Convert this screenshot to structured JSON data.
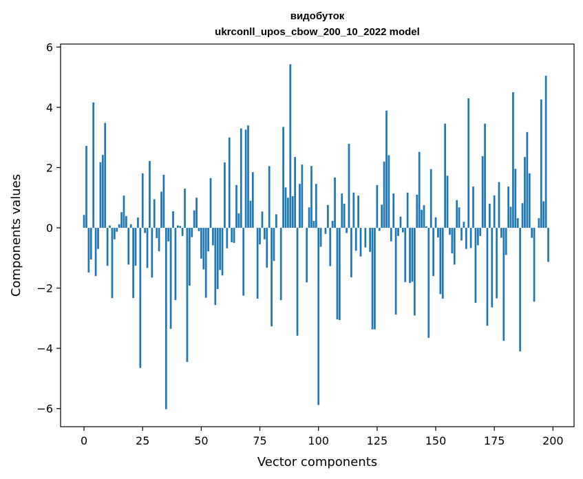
{
  "chart_data": {
    "type": "bar",
    "title": "видобуток",
    "subtitle": "ukrconll_upos_cbow_200_10_2022 model",
    "xlabel": "Vector components",
    "ylabel": "Components values",
    "xlim": [
      -10,
      209
    ],
    "ylim": [
      -6.6,
      6.1
    ],
    "xticks": [
      0,
      25,
      50,
      75,
      100,
      125,
      150,
      175,
      200
    ],
    "yticks": [
      -6,
      -4,
      -2,
      0,
      2,
      4,
      6
    ],
    "bar_color": "#1f77b4",
    "grid": false,
    "legend": "none",
    "values": [
      0.43,
      2.72,
      -1.48,
      -1.05,
      4.16,
      -1.6,
      -0.7,
      2.18,
      2.42,
      3.48,
      -1.26,
      0.08,
      -2.33,
      -0.38,
      -0.13,
      0.12,
      0.52,
      1.07,
      0.39,
      -1.22,
      0.12,
      -2.33,
      -1.26,
      0.34,
      -4.65,
      1.81,
      -0.17,
      -1.33,
      2.22,
      -1.65,
      0.95,
      -0.34,
      -0.78,
      1.2,
      1.76,
      -6.02,
      -0.45,
      -3.35,
      0.55,
      -2.4,
      0.08,
      0.06,
      -0.27,
      1.3,
      -4.45,
      -1.92,
      -0.31,
      0.58,
      1.0,
      -0.11,
      -1.02,
      -1.38,
      -2.32,
      -0.78,
      1.65,
      -0.58,
      -2.56,
      -2.03,
      -1.4,
      -1.58,
      2.17,
      -0.68,
      3.0,
      -0.48,
      -0.5,
      1.42,
      0.48,
      3.3,
      -2.25,
      3.26,
      3.4,
      0.9,
      1.85,
      0.0,
      -2.35,
      -0.55,
      0.54,
      -0.38,
      -1.32,
      2.05,
      -3.27,
      -1.1,
      0.45,
      0.0,
      -2.4,
      3.35,
      1.34,
      1.0,
      5.43,
      1.05,
      2.35,
      -3.58,
      1.46,
      2.1,
      0.0,
      -1.81,
      0.68,
      2.05,
      0.23,
      1.46,
      -5.88,
      -0.63,
      0.0,
      -0.2,
      0.76,
      -1.27,
      0.23,
      1.67,
      -3.04,
      -3.06,
      1.14,
      0.8,
      -0.17,
      2.79,
      -1.64,
      1.17,
      -0.76,
      1.07,
      -0.95,
      0.0,
      -0.65,
      0.0,
      -0.8,
      -3.37,
      -3.37,
      1.42,
      -0.1,
      0.77,
      2.2,
      3.89,
      2.41,
      -0.45,
      1.14,
      -2.88,
      -0.27,
      0.37,
      -0.15,
      -1.8,
      1.17,
      -1.83,
      -1.79,
      -2.91,
      1.1,
      2.52,
      0.6,
      0.75,
      0.05,
      -3.65,
      1.95,
      -1.6,
      0.35,
      -0.32,
      -2.2,
      -2.35,
      3.46,
      1.73,
      -0.23,
      -0.85,
      -1.22,
      0.92,
      0.68,
      -0.42,
      0.2,
      -0.7,
      4.3,
      -0.67,
      1.37,
      -2.49,
      -0.58,
      -0.27,
      2.38,
      3.46,
      -3.25,
      0.8,
      -2.64,
      1.08,
      -2.34,
      1.52,
      -0.33,
      -3.75,
      -0.9,
      1.37,
      0.7,
      4.5,
      1.96,
      0.32,
      -4.1,
      0.82,
      2.35,
      3.18,
      1.81,
      -0.33,
      -2.45,
      0.0,
      0.32,
      4.26,
      0.88,
      5.05,
      -1.13
    ]
  }
}
